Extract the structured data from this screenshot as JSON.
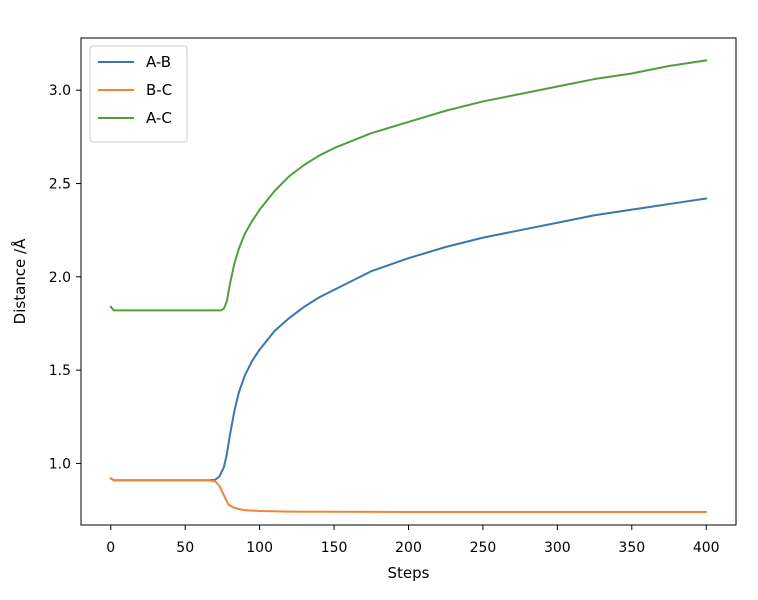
{
  "chart_data": {
    "type": "line",
    "title": "",
    "xlabel": "Steps",
    "ylabel": "Distance /Å",
    "xlim": [
      -20,
      420
    ],
    "ylim": [
      0.67,
      3.28
    ],
    "xticks": [
      0,
      50,
      100,
      150,
      200,
      250,
      300,
      350,
      400
    ],
    "yticks": [
      1.0,
      1.5,
      2.0,
      2.5,
      3.0
    ],
    "ytick_labels": [
      "1.0",
      "1.5",
      "2.0",
      "2.5",
      "3.0"
    ],
    "grid": false,
    "legend": "top-left",
    "series": [
      {
        "name": "A-B",
        "color": "#3a76af",
        "points": [
          [
            0,
            0.92
          ],
          [
            2,
            0.91
          ],
          [
            10,
            0.91
          ],
          [
            30,
            0.91
          ],
          [
            50,
            0.91
          ],
          [
            65,
            0.91
          ],
          [
            70,
            0.912
          ],
          [
            73,
            0.93
          ],
          [
            76,
            0.98
          ],
          [
            78,
            1.05
          ],
          [
            80,
            1.15
          ],
          [
            83,
            1.28
          ],
          [
            86,
            1.38
          ],
          [
            90,
            1.47
          ],
          [
            95,
            1.55
          ],
          [
            100,
            1.61
          ],
          [
            110,
            1.71
          ],
          [
            120,
            1.78
          ],
          [
            130,
            1.84
          ],
          [
            140,
            1.89
          ],
          [
            150,
            1.93
          ],
          [
            175,
            2.03
          ],
          [
            200,
            2.1
          ],
          [
            225,
            2.16
          ],
          [
            250,
            2.21
          ],
          [
            275,
            2.25
          ],
          [
            300,
            2.29
          ],
          [
            325,
            2.33
          ],
          [
            350,
            2.36
          ],
          [
            375,
            2.39
          ],
          [
            400,
            2.42
          ]
        ]
      },
      {
        "name": "B-C",
        "color": "#ef8636",
        "points": [
          [
            0,
            0.92
          ],
          [
            2,
            0.91
          ],
          [
            10,
            0.91
          ],
          [
            30,
            0.91
          ],
          [
            50,
            0.91
          ],
          [
            65,
            0.91
          ],
          [
            70,
            0.905
          ],
          [
            73,
            0.88
          ],
          [
            76,
            0.83
          ],
          [
            79,
            0.78
          ],
          [
            82,
            0.765
          ],
          [
            86,
            0.755
          ],
          [
            90,
            0.75
          ],
          [
            100,
            0.745
          ],
          [
            120,
            0.742
          ],
          [
            150,
            0.741
          ],
          [
            200,
            0.74
          ],
          [
            250,
            0.74
          ],
          [
            300,
            0.74
          ],
          [
            350,
            0.74
          ],
          [
            400,
            0.74
          ]
        ]
      },
      {
        "name": "A-C",
        "color": "#519e3e",
        "points": [
          [
            0,
            1.84
          ],
          [
            2,
            1.82
          ],
          [
            10,
            1.82
          ],
          [
            30,
            1.82
          ],
          [
            50,
            1.82
          ],
          [
            70,
            1.82
          ],
          [
            74,
            1.82
          ],
          [
            76,
            1.83
          ],
          [
            78,
            1.87
          ],
          [
            80,
            1.96
          ],
          [
            83,
            2.07
          ],
          [
            86,
            2.15
          ],
          [
            90,
            2.23
          ],
          [
            95,
            2.3
          ],
          [
            100,
            2.36
          ],
          [
            110,
            2.46
          ],
          [
            120,
            2.54
          ],
          [
            130,
            2.6
          ],
          [
            140,
            2.65
          ],
          [
            150,
            2.69
          ],
          [
            175,
            2.77
          ],
          [
            200,
            2.83
          ],
          [
            225,
            2.89
          ],
          [
            250,
            2.94
          ],
          [
            275,
            2.98
          ],
          [
            300,
            3.02
          ],
          [
            325,
            3.06
          ],
          [
            350,
            3.09
          ],
          [
            375,
            3.13
          ],
          [
            400,
            3.16
          ]
        ]
      }
    ]
  }
}
